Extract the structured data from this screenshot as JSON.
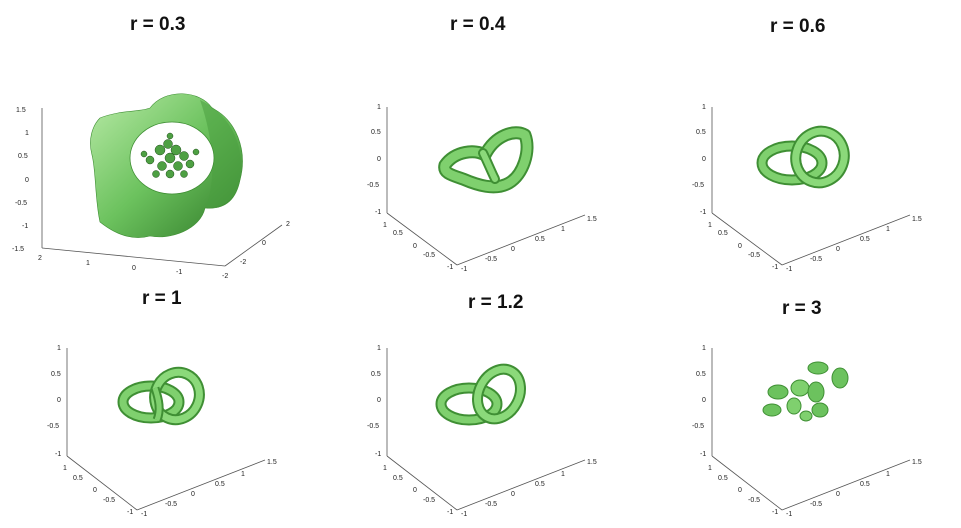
{
  "panels": [
    {
      "title": "r = 0.3",
      "z_ticks": [
        "1.5",
        "1",
        "0.5",
        "0",
        "-0.5",
        "-1",
        "-1.5"
      ],
      "x_ticks": [
        "2",
        "1",
        "0",
        "-1",
        "-2"
      ],
      "y_ticks": [
        "2",
        "0",
        "-2"
      ]
    },
    {
      "title": "r = 0.4",
      "z_ticks": [
        "1",
        "0.5",
        "0",
        "-0.5",
        "-1"
      ],
      "x_ticks": [
        "1",
        "0.5",
        "0",
        "-0.5",
        "-1"
      ],
      "y_ticks": [
        "1.5",
        "1",
        "0.5",
        "0",
        "-0.5",
        "-1"
      ]
    },
    {
      "title": "r = 0.6",
      "z_ticks": [
        "1",
        "0.5",
        "0",
        "-0.5",
        "-1"
      ],
      "x_ticks": [
        "1",
        "0.5",
        "0",
        "-0.5",
        "-1"
      ],
      "y_ticks": [
        "1.5",
        "1",
        "0.5",
        "0",
        "-0.5",
        "-1"
      ]
    },
    {
      "title": "r = 1",
      "z_ticks": [
        "1",
        "0.5",
        "0",
        "-0.5",
        "-1"
      ],
      "x_ticks": [
        "1",
        "0.5",
        "0",
        "-0.5",
        "-1"
      ],
      "y_ticks": [
        "1.5",
        "1",
        "0.5",
        "0",
        "-0.5",
        "-1"
      ]
    },
    {
      "title": "r = 1.2",
      "z_ticks": [
        "1",
        "0.5",
        "0",
        "-0.5",
        "-1"
      ],
      "x_ticks": [
        "1",
        "0.5",
        "0",
        "-0.5",
        "-1"
      ],
      "y_ticks": [
        "1.5",
        "1",
        "0.5",
        "0",
        "-0.5",
        "-1"
      ]
    },
    {
      "title": "r = 3",
      "z_ticks": [
        "1",
        "0.5",
        "0",
        "-0.5",
        "-1"
      ],
      "x_ticks": [
        "1",
        "0.5",
        "0",
        "-0.5",
        "-1"
      ],
      "y_ticks": [
        "1.5",
        "1",
        "0.5",
        "0",
        "-0.5",
        "-1"
      ]
    }
  ],
  "colors": {
    "surface": "#6cc25e",
    "surface_dark": "#3f8f34",
    "surface_light": "#b8eaa6",
    "axis": "#555555"
  }
}
